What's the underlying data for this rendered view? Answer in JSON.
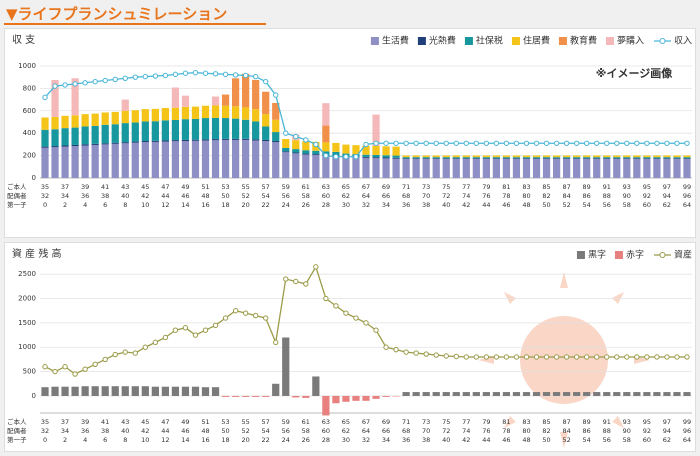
{
  "title": "▼ライフプランシュミレーション",
  "chart_data": [
    {
      "type": "stacked_bar_line",
      "title": "収 支",
      "annotation": "※イメージ画像",
      "stacked": true,
      "row_labels": [
        "ご本人",
        "配偶者",
        "第一子"
      ],
      "categories": [
        "35",
        null,
        "37",
        null,
        "39",
        null,
        "41",
        null,
        "43",
        null,
        "45",
        null,
        "47",
        null,
        "49",
        null,
        "51",
        null,
        "53",
        null,
        "55",
        null,
        "57",
        null,
        "59",
        null,
        "61",
        null,
        "63",
        null,
        "65",
        null,
        "67",
        null,
        "69",
        null,
        "71",
        null,
        "73",
        null,
        "75",
        null,
        "77",
        null,
        "79",
        null,
        "81",
        null,
        "83",
        null,
        "85",
        null,
        "87",
        null,
        "89",
        null,
        "91",
        null,
        "93",
        null,
        "95",
        null,
        "97",
        null,
        "99"
      ],
      "spouse_labels": [
        "32",
        null,
        "34",
        null,
        "36",
        null,
        "38",
        null,
        "40",
        null,
        "42",
        null,
        "44",
        null,
        "46",
        null,
        "48",
        null,
        "50",
        null,
        "52",
        null,
        "54",
        null,
        "56",
        null,
        "58",
        null,
        "60",
        null,
        "62",
        null,
        "64",
        null,
        "66",
        null,
        "68",
        null,
        "70",
        null,
        "72",
        null,
        "74",
        null,
        "76",
        null,
        "78",
        null,
        "80",
        null,
        "82",
        null,
        "84",
        null,
        "86",
        null,
        "88",
        null,
        "90",
        null,
        "92",
        null,
        "94",
        null,
        "96"
      ],
      "child_labels": [
        "0",
        null,
        "2",
        null,
        "4",
        null,
        "6",
        null,
        "8",
        null,
        "10",
        null,
        "12",
        null,
        "14",
        null,
        "16",
        null,
        "18",
        null,
        "20",
        null,
        "22",
        null,
        "24",
        null,
        "26",
        null,
        "28",
        null,
        "30",
        null,
        "32",
        null,
        "34",
        null,
        "36",
        null,
        "38",
        null,
        "40",
        null,
        "42",
        null,
        "44",
        null,
        "46",
        null,
        "48",
        null,
        "50",
        null,
        "52",
        null,
        "54",
        null,
        "56",
        null,
        "58",
        null,
        "60",
        null,
        "62",
        null,
        "64"
      ],
      "ylim": [
        0,
        1080
      ],
      "yticks": [
        0,
        200,
        400,
        600,
        800,
        1000
      ],
      "grid": true,
      "series": [
        {
          "name": "生活費",
          "type": "bar",
          "color": "#8e8fc4",
          "values": [
            270,
            275,
            280,
            285,
            290,
            295,
            300,
            305,
            310,
            315,
            320,
            322,
            325,
            328,
            330,
            332,
            335,
            337,
            340,
            340,
            340,
            335,
            330,
            320,
            230,
            220,
            210,
            205,
            200,
            195,
            190,
            185,
            180,
            178,
            175,
            172,
            170,
            170,
            170,
            170,
            170,
            170,
            170,
            170,
            170,
            170,
            170,
            170,
            170,
            170,
            170,
            170,
            170,
            170,
            170,
            170,
            170,
            170,
            170,
            170,
            170,
            170,
            170,
            170,
            170
          ]
        },
        {
          "name": "光熱費",
          "type": "bar",
          "color": "#1f3f7a",
          "values": [
            10,
            10,
            10,
            10,
            10,
            10,
            10,
            10,
            10,
            10,
            10,
            10,
            10,
            10,
            10,
            10,
            10,
            10,
            10,
            10,
            10,
            10,
            10,
            10,
            8,
            8,
            8,
            8,
            8,
            8,
            8,
            8,
            8,
            8,
            8,
            8,
            6,
            6,
            6,
            6,
            6,
            6,
            6,
            6,
            6,
            6,
            6,
            6,
            6,
            6,
            6,
            6,
            6,
            6,
            6,
            6,
            6,
            6,
            6,
            6,
            6,
            6,
            6,
            6,
            6
          ]
        },
        {
          "name": "社保税",
          "type": "bar",
          "color": "#17979e",
          "values": [
            150,
            150,
            155,
            155,
            160,
            160,
            165,
            165,
            170,
            170,
            175,
            175,
            180,
            180,
            185,
            185,
            190,
            190,
            185,
            180,
            170,
            160,
            120,
            80,
            30,
            30,
            30,
            30,
            30,
            30,
            20,
            20,
            20,
            20,
            20,
            20,
            10,
            10,
            10,
            10,
            10,
            10,
            10,
            10,
            10,
            10,
            10,
            10,
            10,
            10,
            10,
            10,
            10,
            10,
            10,
            10,
            10,
            10,
            10,
            10,
            10,
            10,
            10,
            10,
            10
          ]
        },
        {
          "name": "住居費",
          "type": "bar",
          "color": "#f4c518",
          "values": [
            110,
            110,
            110,
            110,
            110,
            110,
            110,
            110,
            110,
            110,
            110,
            110,
            110,
            110,
            110,
            110,
            110,
            110,
            110,
            110,
            110,
            110,
            110,
            110,
            80,
            80,
            80,
            80,
            80,
            80,
            80,
            80,
            80,
            80,
            80,
            80,
            15,
            15,
            15,
            15,
            15,
            15,
            15,
            15,
            15,
            15,
            15,
            15,
            15,
            15,
            15,
            15,
            15,
            15,
            15,
            15,
            15,
            15,
            15,
            15,
            15,
            15,
            15,
            15,
            15
          ]
        },
        {
          "name": "教育費",
          "type": "bar",
          "color": "#f0904a",
          "values": [
            0,
            0,
            0,
            0,
            0,
            0,
            0,
            0,
            0,
            0,
            0,
            0,
            0,
            0,
            0,
            0,
            0,
            0,
            100,
            250,
            300,
            260,
            200,
            150,
            0,
            0,
            0,
            0,
            150,
            0,
            0,
            0,
            0,
            0,
            0,
            0,
            0,
            0,
            0,
            0,
            0,
            0,
            0,
            0,
            0,
            0,
            0,
            0,
            0,
            0,
            0,
            0,
            0,
            0,
            0,
            0,
            0,
            0,
            0,
            0,
            0,
            0,
            0,
            0,
            0
          ]
        },
        {
          "name": "夢購入",
          "type": "bar",
          "color": "#f4b8b8",
          "values": [
            0,
            330,
            0,
            330,
            0,
            0,
            0,
            0,
            100,
            0,
            0,
            0,
            0,
            180,
            100,
            0,
            0,
            80,
            0,
            0,
            0,
            0,
            0,
            0,
            0,
            50,
            0,
            0,
            200,
            0,
            0,
            0,
            0,
            280,
            0,
            0,
            0,
            0,
            0,
            0,
            0,
            0,
            0,
            0,
            0,
            0,
            0,
            0,
            0,
            0,
            0,
            0,
            0,
            0,
            0,
            0,
            0,
            0,
            0,
            0,
            0,
            0,
            0,
            0,
            0
          ]
        },
        {
          "name": "収入",
          "type": "line",
          "color": "#49b6d6",
          "values": [
            720,
            820,
            830,
            840,
            850,
            860,
            870,
            880,
            890,
            900,
            905,
            910,
            915,
            925,
            935,
            940,
            935,
            930,
            925,
            920,
            915,
            905,
            860,
            740,
            400,
            370,
            340,
            300,
            200,
            190,
            190,
            190,
            300,
            310,
            310,
            310,
            310,
            310,
            310,
            310,
            310,
            310,
            310,
            310,
            310,
            310,
            310,
            310,
            310,
            310,
            310,
            310,
            310,
            310,
            310,
            310,
            310,
            310,
            310,
            310,
            310,
            310,
            310,
            310,
            310
          ]
        }
      ]
    },
    {
      "type": "bar_line",
      "title": "資 産 残 高",
      "stacked": false,
      "row_labels": [
        "ご本人",
        "配偶者",
        "第一子"
      ],
      "categories": [
        "35",
        null,
        "37",
        null,
        "39",
        null,
        "41",
        null,
        "43",
        null,
        "45",
        null,
        "47",
        null,
        "49",
        null,
        "51",
        null,
        "53",
        null,
        "55",
        null,
        "57",
        null,
        "59",
        null,
        "61",
        null,
        "63",
        null,
        "65",
        null,
        "67",
        null,
        "69",
        null,
        "71",
        null,
        "73",
        null,
        "75",
        null,
        "77",
        null,
        "79",
        null,
        "81",
        null,
        "83",
        null,
        "85",
        null,
        "87",
        null,
        "89",
        null,
        "91",
        null,
        "93",
        null,
        "95",
        null,
        "97",
        null,
        "99"
      ],
      "spouse_labels": [
        "32",
        null,
        "34",
        null,
        "36",
        null,
        "38",
        null,
        "40",
        null,
        "42",
        null,
        "44",
        null,
        "46",
        null,
        "48",
        null,
        "50",
        null,
        "52",
        null,
        "54",
        null,
        "56",
        null,
        "58",
        null,
        "60",
        null,
        "62",
        null,
        "64",
        null,
        "66",
        null,
        "68",
        null,
        "70",
        null,
        "72",
        null,
        "74",
        null,
        "76",
        null,
        "78",
        null,
        "80",
        null,
        "82",
        null,
        "84",
        null,
        "86",
        null,
        "88",
        null,
        "90",
        null,
        "92",
        null,
        "94",
        null,
        "96"
      ],
      "child_labels": [
        "0",
        null,
        "2",
        null,
        "4",
        null,
        "6",
        null,
        "8",
        null,
        "10",
        null,
        "12",
        null,
        "14",
        null,
        "16",
        null,
        "18",
        null,
        "20",
        null,
        "22",
        null,
        "24",
        null,
        "26",
        null,
        "28",
        null,
        "30",
        null,
        "32",
        null,
        "34",
        null,
        "36",
        null,
        "38",
        null,
        "40",
        null,
        "42",
        null,
        "44",
        null,
        "46",
        null,
        "48",
        null,
        "50",
        null,
        "52",
        null,
        "54",
        null,
        "56",
        null,
        "58",
        null,
        "60",
        null,
        "62",
        null,
        "64"
      ],
      "ylim": [
        -350,
        2750
      ],
      "yticks": [
        0,
        500,
        1000,
        1500,
        2000,
        2500
      ],
      "grid": true,
      "series": [
        {
          "name": "黒字",
          "type": "bar",
          "color": "#7a7a7a",
          "values": [
            180,
            190,
            190,
            190,
            200,
            200,
            200,
            200,
            200,
            200,
            200,
            190,
            190,
            190,
            190,
            190,
            180,
            180,
            null,
            null,
            null,
            null,
            null,
            250,
            1200,
            null,
            null,
            400,
            null,
            null,
            null,
            null,
            null,
            null,
            null,
            null,
            80,
            80,
            80,
            80,
            80,
            80,
            80,
            80,
            80,
            80,
            80,
            80,
            80,
            80,
            80,
            80,
            80,
            80,
            80,
            80,
            80,
            80,
            80,
            80,
            80,
            80,
            80,
            80,
            80
          ]
        },
        {
          "name": "赤字",
          "type": "bar",
          "color": "#e98080",
          "values": [
            null,
            null,
            null,
            null,
            null,
            null,
            null,
            null,
            null,
            null,
            null,
            null,
            null,
            null,
            null,
            null,
            null,
            null,
            -20,
            -20,
            -20,
            -20,
            -20,
            null,
            null,
            -30,
            -40,
            null,
            -400,
            -150,
            -120,
            -100,
            -100,
            -60,
            -20,
            -10,
            null,
            null,
            null,
            null,
            null,
            null,
            null,
            null,
            null,
            null,
            null,
            null,
            null,
            null,
            null,
            null,
            null,
            null,
            null,
            null,
            null,
            null,
            null,
            null,
            null,
            null,
            null,
            null,
            null
          ]
        },
        {
          "name": "資産",
          "type": "line",
          "color": "#9b9b4a",
          "values": [
            600,
            500,
            600,
            450,
            550,
            650,
            750,
            850,
            900,
            880,
            1000,
            1100,
            1200,
            1350,
            1400,
            1250,
            1350,
            1450,
            1600,
            1750,
            1700,
            1650,
            1600,
            1100,
            2400,
            2350,
            2300,
            2650,
            2000,
            1850,
            1700,
            1600,
            1500,
            1350,
            1000,
            950,
            900,
            880,
            860,
            840,
            820,
            810,
            800,
            800,
            800,
            800,
            800,
            800,
            800,
            800,
            800,
            800,
            800,
            800,
            800,
            800,
            800,
            800,
            800,
            800,
            800,
            800,
            800,
            800,
            800
          ]
        }
      ]
    }
  ]
}
